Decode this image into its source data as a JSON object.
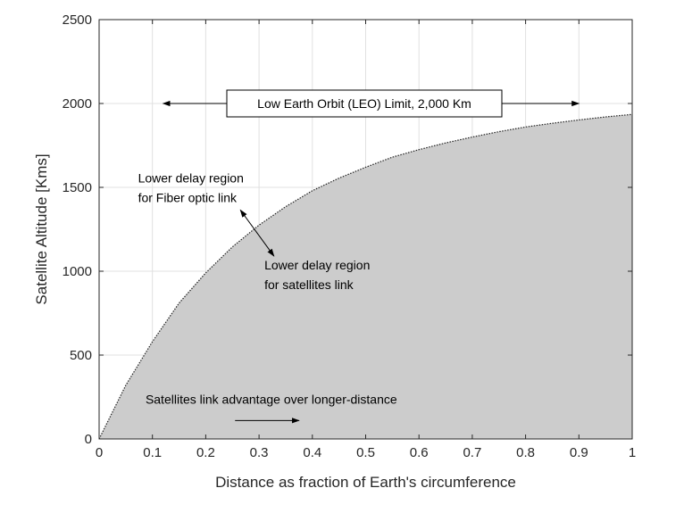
{
  "chart_data": {
    "type": "area",
    "title": "",
    "xlabel": "Distance as fraction of Earth's circumference",
    "ylabel": "Satellite Altitude [Kms]",
    "xlim": [
      0,
      1
    ],
    "ylim": [
      0,
      2500
    ],
    "grid": true,
    "x_ticks": [
      0,
      0.1,
      0.2,
      0.3,
      0.4,
      0.5,
      0.6,
      0.7,
      0.8,
      0.9,
      1
    ],
    "x_tick_labels": [
      "0",
      "0.1",
      "0.2",
      "0.3",
      "0.4",
      "0.5",
      "0.6",
      "0.7",
      "0.8",
      "0.9",
      "1"
    ],
    "y_ticks": [
      0,
      500,
      1000,
      1500,
      2000,
      2500
    ],
    "y_tick_labels": [
      "0",
      "500",
      "1000",
      "1500",
      "2000",
      "2500"
    ],
    "series": [
      {
        "x": [
          0,
          0.05,
          0.1,
          0.15,
          0.2,
          0.25,
          0.3,
          0.35,
          0.4,
          0.45,
          0.5,
          0.55,
          0.6,
          0.65,
          0.7,
          0.75,
          0.8,
          0.85,
          0.9,
          0.95,
          1
        ],
        "y": [
          0,
          320,
          580,
          810,
          990,
          1145,
          1275,
          1385,
          1480,
          1555,
          1620,
          1680,
          1725,
          1765,
          1800,
          1832,
          1860,
          1882,
          1902,
          1920,
          1935
        ],
        "color": "#cccccc"
      }
    ],
    "annotations": {
      "leo_limit": {
        "text": "Low Earth Orbit (LEO) Limit, 2,000 Km",
        "y": 2000,
        "arrow_left_to_x": 0.12,
        "arrow_right_to_x": 0.9
      },
      "fiber_region": {
        "lines": [
          "Lower delay region",
          "for Fiber optic link"
        ],
        "x": 0.073,
        "y": 1530
      },
      "sat_region": {
        "lines": [
          "Lower delay region",
          "for satellites link"
        ],
        "x": 0.31,
        "y": 1010
      },
      "double_arrow": {
        "from": [
          0.265,
          1365
        ],
        "to": [
          0.328,
          1090
        ]
      },
      "advantage": {
        "text": "Satellites link advantage over longer-distance",
        "x": 0.087,
        "y": 210,
        "arrow_from_x": 0.255,
        "arrow_to_x": 0.375,
        "arrow_y": 110
      }
    }
  }
}
